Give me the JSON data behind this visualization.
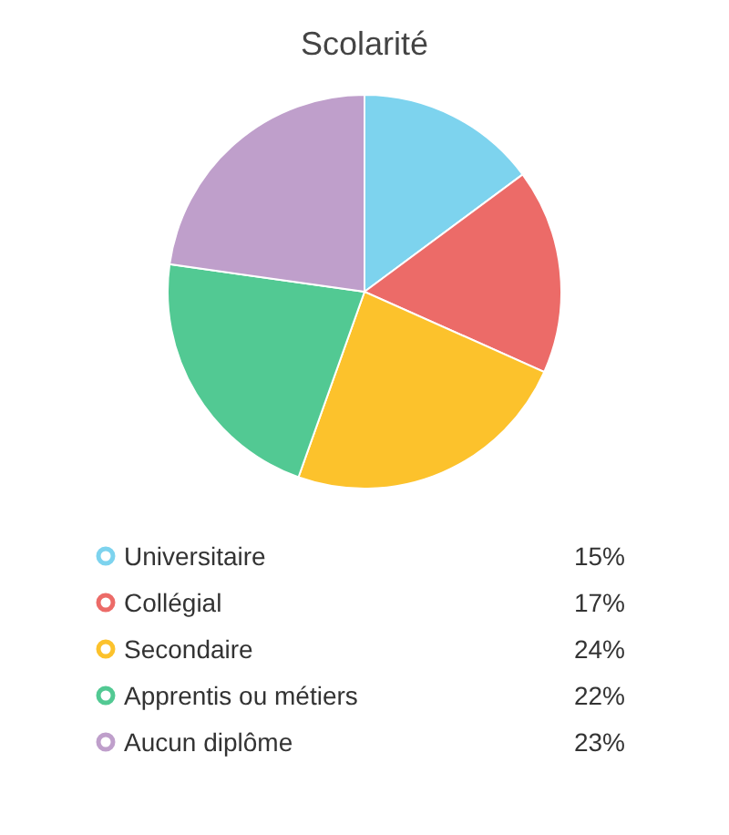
{
  "chart_data": {
    "type": "pie",
    "title": "Scolarité",
    "categories": [
      "Universitaire",
      "Collégial",
      "Secondaire",
      "Apprentis ou métiers",
      "Aucun diplôme"
    ],
    "values": [
      15,
      17,
      24,
      22,
      23
    ],
    "value_labels": [
      "15%",
      "17%",
      "24%",
      "22%",
      "23%"
    ],
    "colors": [
      "#7dd3ee",
      "#ec6b68",
      "#fcc22c",
      "#52c993",
      "#bf9fcb"
    ],
    "legend": "bottom"
  }
}
